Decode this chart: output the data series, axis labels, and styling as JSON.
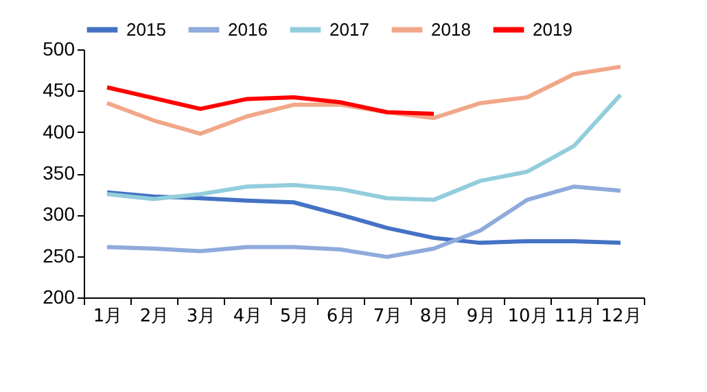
{
  "chart_data": {
    "type": "line",
    "categories": [
      "1月",
      "2月",
      "3月",
      "4月",
      "5月",
      "6月",
      "7月",
      "8月",
      "9月",
      "10月",
      "11月",
      "12月"
    ],
    "ylim": [
      200,
      500
    ],
    "yticks": [
      200,
      250,
      300,
      350,
      400,
      450,
      500
    ],
    "grid": false,
    "legend": "top",
    "marker": "none",
    "series": [
      {
        "name": "2015",
        "color": "#4472c4",
        "values": [
          327,
          322,
          320,
          317,
          315,
          300,
          284,
          272,
          266,
          268,
          268,
          266
        ]
      },
      {
        "name": "2016",
        "color": "#8faadc",
        "values": [
          261,
          259,
          256,
          261,
          261,
          258,
          249,
          259,
          281,
          318,
          334,
          329
        ]
      },
      {
        "name": "2017",
        "color": "#92cddc",
        "values": [
          325,
          319,
          325,
          334,
          336,
          331,
          320,
          318,
          341,
          352,
          383,
          445
        ]
      },
      {
        "name": "2018",
        "color": "#f1a78a",
        "values": [
          435,
          414,
          398,
          419,
          433,
          433,
          424,
          417,
          435,
          442,
          470,
          479
        ]
      },
      {
        "name": "2019",
        "color": "#ff0000",
        "values": [
          454,
          441,
          428,
          440,
          442,
          436,
          424,
          422,
          null,
          null,
          null,
          null
        ]
      }
    ]
  }
}
